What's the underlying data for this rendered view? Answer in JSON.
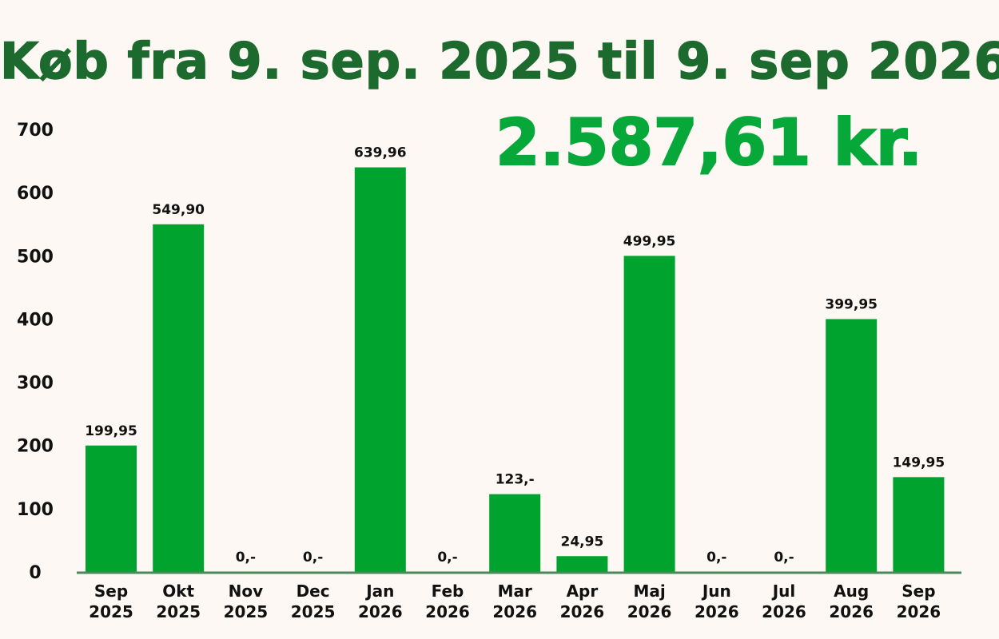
{
  "title": "Køb fra 9. sep. 2025 til 9. sep 2026",
  "total": "2.587,61 kr.",
  "colors": {
    "bar": "#00a32e",
    "title": "#1d6a2e",
    "total": "#07a83a",
    "axis": "#4a8a5a",
    "background": "#fdf8f4"
  },
  "chart_data": {
    "type": "bar",
    "title": "Køb fra 9. sep. 2025 til 9. sep 2026",
    "xlabel": "",
    "ylabel": "",
    "ylim": [
      0,
      700
    ],
    "yticks": [
      "0",
      "100",
      "200",
      "300",
      "400",
      "500",
      "600",
      "700"
    ],
    "grid": false,
    "categories": [
      [
        "Sep",
        "2025"
      ],
      [
        "Okt",
        "2025"
      ],
      [
        "Nov",
        "2025"
      ],
      [
        "Dec",
        "2025"
      ],
      [
        "Jan",
        "2026"
      ],
      [
        "Feb",
        "2026"
      ],
      [
        "Mar",
        "2026"
      ],
      [
        "Apr",
        "2026"
      ],
      [
        "Maj",
        "2026"
      ],
      [
        "Jun",
        "2026"
      ],
      [
        "Jul",
        "2026"
      ],
      [
        "Aug",
        "2026"
      ],
      [
        "Sep",
        "2026"
      ]
    ],
    "values": [
      199.95,
      549.9,
      0,
      0,
      639.96,
      0,
      123,
      24.95,
      499.95,
      0,
      0,
      399.95,
      149.95
    ],
    "data_labels": [
      "199,95",
      "549,90",
      "0,-",
      "0,-",
      "639,96",
      "0,-",
      "123,-",
      "24,95",
      "499,95",
      "0,-",
      "0,-",
      "399,95",
      "149,95"
    ]
  }
}
